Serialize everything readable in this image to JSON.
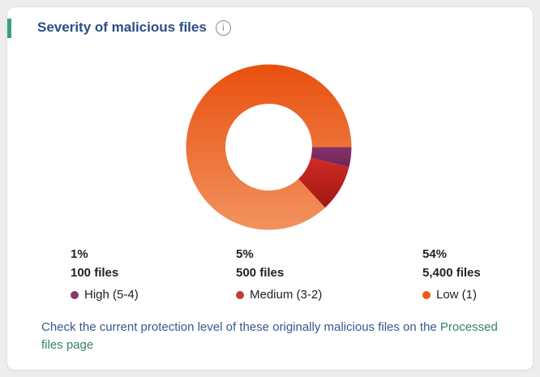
{
  "card": {
    "title": "Severity of malicious files",
    "title_color": "#2b4d87",
    "accent_bar_color": "#3f9e7d",
    "info_icon_glyph": "i",
    "info_icon_color": "#8b8b8b"
  },
  "chart_data": {
    "type": "pie",
    "donut": true,
    "title": "Severity of malicious files",
    "legend_position": "bottom",
    "start_angle_deg": 0,
    "display_angles_deg": [
      14,
      33,
      313
    ],
    "segments": [
      {
        "label": "High (5-4)",
        "percent": "1%",
        "files_text": "100 files",
        "value": 100,
        "dot_color": "#8c3667",
        "gradient": [
          "#86336b",
          "#6f2557"
        ]
      },
      {
        "label": "Medium (3-2)",
        "percent": "5%",
        "files_text": "500 files",
        "value": 500,
        "dot_color": "#c23a32",
        "gradient": [
          "#d02b24",
          "#9f1712"
        ]
      },
      {
        "label": "Low (1)",
        "percent": "54%",
        "files_text": "5,400 files",
        "value": 5400,
        "dot_color": "#ea5c14",
        "gradient": [
          "#e8500e",
          "#f2925f"
        ]
      }
    ]
  },
  "footer": {
    "text_before_link": "Check the current protection level of these originally malicious files on the",
    "link_text": "Processed files page",
    "text_color": "#35598f",
    "link_color": "#2f8568"
  },
  "colors": {
    "page_background": "#ededed",
    "card_background": "#ffffff",
    "card_border": "#e3e3e3",
    "legend_text": "#21212b"
  }
}
